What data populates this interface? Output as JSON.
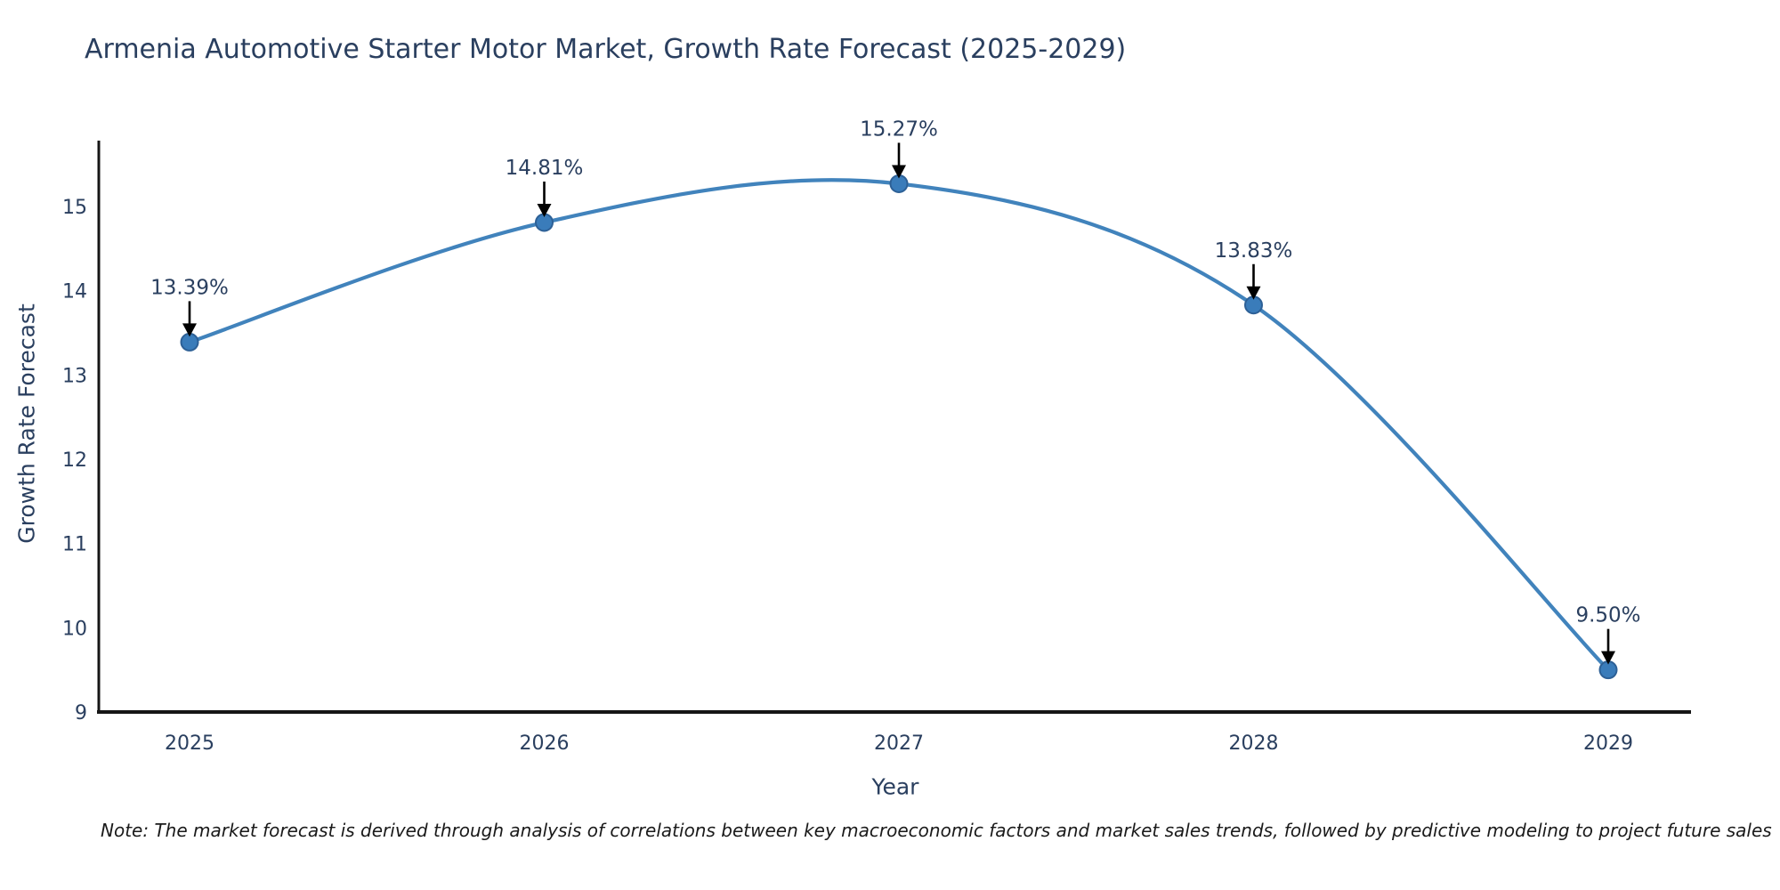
{
  "note": "Note: The market forecast is derived through analysis of correlations between key macroeconomic factors and market sales trends, followed by predictive modeling to project future sales",
  "chart_data": {
    "type": "line",
    "title": "Armenia Automotive Starter Motor Market, Growth Rate Forecast (2025-2029)",
    "xlabel": "Year",
    "ylabel": "Growth Rate Forecast",
    "x": [
      "2025",
      "2026",
      "2027",
      "2028",
      "2029"
    ],
    "values": [
      13.39,
      14.81,
      15.27,
      13.83,
      9.5
    ],
    "point_labels": [
      "13.39%",
      "14.81%",
      "15.27%",
      "13.83%",
      "9.50%"
    ],
    "ylim": [
      9,
      15.8
    ],
    "y_ticks": [
      9,
      10,
      11,
      12,
      13,
      14,
      15
    ],
    "grid": false,
    "legend": "none",
    "line_shape": "spline",
    "annotation_style": "label-with-down-arrow-at-each-point",
    "colors": {
      "line": "#4183bc",
      "marker_fill": "#3a7cba",
      "marker_stroke": "#2d6096",
      "text": "#2a3f5f",
      "axis_line": "#161616",
      "arrow": "#000000",
      "note_text": "#1a1a1a",
      "background": "#ffffff"
    }
  }
}
